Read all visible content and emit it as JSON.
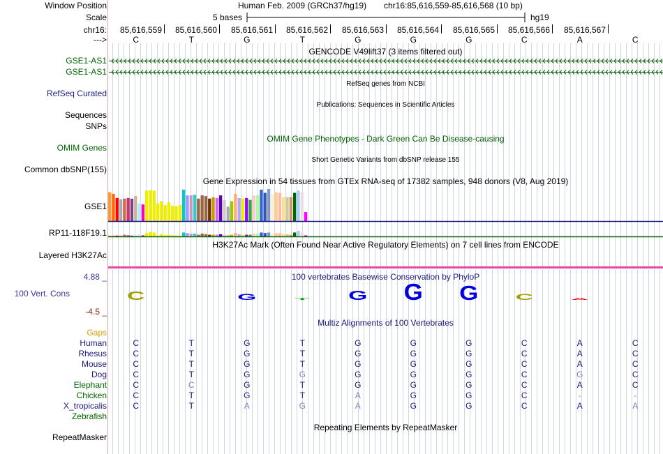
{
  "colors": {
    "track_gene": "#006400",
    "track_navy": "#1a1a7e",
    "cons_axis": "#3a3a9a",
    "gaps": "#e0a000",
    "guide_line": "#cfd3e6",
    "mismatch": "#7f7fbf"
  },
  "header": {
    "window_label": "Window Position",
    "scale_label": "Scale",
    "chrom_label": "chr16:",
    "strand_label": "--->",
    "assembly_text": "Human Feb. 2009 (GRCh37/hg19)",
    "region_text": "chr16:85,616,559-85,616,568 (10 bp)",
    "scale_text": "5 bases",
    "db_text": "hg19",
    "positions": [
      "85,616,559",
      "85,616,560",
      "85,616,561",
      "85,616,562",
      "85,616,563",
      "85,616,564",
      "85,616,565",
      "85,616,566",
      "85,616,567"
    ]
  },
  "sequence": [
    "C",
    "T",
    "G",
    "T",
    "G",
    "G",
    "G",
    "C",
    "A",
    "C"
  ],
  "gencode": {
    "title": "GENCODE V49lift37 (3 items filtered out)",
    "items": [
      "GSE1-AS1",
      "GSE1-AS1"
    ]
  },
  "refseq": {
    "label": "RefSeq Curated",
    "title": "RefSeq genes from NCBI"
  },
  "sequences": {
    "label": "Sequences",
    "title": "Publications: Sequences in Scientific Articles"
  },
  "snps": {
    "label": "SNPs"
  },
  "omim": {
    "label": "OMIM Genes",
    "title": "OMIM Gene Phenotypes - Dark Green Can Be Disease-causing"
  },
  "dbsnp": {
    "label": "Common dbSNP(155)",
    "title": "Short Genetic Variants from dbSNP release 155"
  },
  "gtex": {
    "title": "Gene Expression in 54 tissues from GTEx RNA-seq of 17382 samples, 948 donors (V8, Aug 2019)",
    "gene1": "GSE1",
    "gene2": "RP11-118F19.1",
    "levels1": [
      0.9,
      0.85,
      0.72,
      0.68,
      0.7,
      0.72,
      0.7,
      0.78,
      0.55,
      0.52,
      0.95,
      0.96,
      0.95,
      0.55,
      0.62,
      0.5,
      0.58,
      0.48,
      0.46,
      0.5,
      0.98,
      0.8,
      0.8,
      0.82,
      0.7,
      0.8,
      0.78,
      0.7,
      0.74,
      0.72,
      0.8,
      0.65,
      0.45,
      0.62,
      0.85,
      0.72,
      0.7,
      0.72,
      0.66,
      0.8,
      0.8,
      0.98,
      0.88,
      1.0,
      0.84,
      0.9,
      0.88,
      0.75,
      0.75,
      0.75,
      0.88,
      0.95,
      0.9,
      0.28
    ],
    "levels2": [
      0.1,
      0.1,
      0.15,
      0.15,
      0.3,
      0.2,
      0.15,
      0.1,
      0.3,
      0.2,
      0.6,
      0.8,
      0.7,
      0.2,
      0.4,
      0.2,
      0.3,
      0.2,
      0.15,
      0.2,
      0.7,
      0.6,
      0.5,
      0.5,
      0.3,
      0.5,
      0.4,
      0.3,
      0.3,
      0.3,
      0.4,
      0.3,
      0.2,
      0.3,
      0.6,
      0.4,
      0.3,
      0.3,
      0.3,
      0.5,
      0.5,
      0.7,
      0.6,
      0.7,
      0.5,
      0.6,
      0.6,
      0.4,
      0.4,
      0.3,
      0.7,
      1.0,
      0.7,
      0.2
    ],
    "colors": [
      "#FF9933",
      "#FF6600",
      "#FF0000",
      "#AAAAAA",
      "#CC6655",
      "#CC3366",
      "#77448B",
      "#CCB399",
      "#AAEEFF",
      "#FF00BB",
      "#EEEE00",
      "#EEEE00",
      "#EEEE00",
      "#EEEE00",
      "#EEEE00",
      "#EEEE00",
      "#EEEE00",
      "#EEEE00",
      "#EEEE00",
      "#EEEE00",
      "#00CCCC",
      "#9999FF",
      "#CC99BB",
      "#33CCCC",
      "#996644",
      "#996644",
      "#996644",
      "#663300",
      "#CC9900",
      "#CC66FF",
      "#6600AA",
      "#CCCCCC",
      "#AAAAAA",
      "#99CC00",
      "#FFAA77",
      "#AAAAFF",
      "#EEEE00",
      "#9900FF",
      "#33AA33",
      "#FFCCCC",
      "#AAFF99",
      "#3366CC",
      "#3355BB",
      "#7799CC",
      "#FFEECC",
      "#FFCC99",
      "#FFBB99",
      "#FFDD99",
      "#CCCC99",
      "#CC9966",
      "#006600",
      "#AACCFF",
      "#EEDDDD",
      "#FF00FF"
    ]
  },
  "h3k27ac": {
    "label": "Layered H3K27Ac",
    "title": "H3K27Ac Mark (Often Found Near Active Regulatory Elements) on 7 cell lines from ENCODE"
  },
  "phylop": {
    "label": "100 Vert. Cons",
    "max_label": "4.88 _",
    "min_label": "-4.5 _",
    "title": "100 vertebrates Basewise Conservation by PhyloP",
    "scores": [
      1.6,
      0.0,
      1.1,
      0.1,
      1.7,
      3.0,
      2.6,
      1.1,
      0.35,
      0.0
    ]
  },
  "multiz": {
    "title": "Multiz Alignments of 100 Vertebrates",
    "gaps_label": "Gaps",
    "species": [
      {
        "name": "Human",
        "bases": [
          "C",
          "T",
          "G",
          "T",
          "G",
          "G",
          "G",
          "C",
          "A",
          "C"
        ]
      },
      {
        "name": "Rhesus",
        "bases": [
          "C",
          "T",
          "G",
          "T",
          "G",
          "G",
          "G",
          "C",
          "A",
          "C"
        ]
      },
      {
        "name": "Mouse",
        "bases": [
          "C",
          "T",
          "G",
          "T",
          "G",
          "G",
          "G",
          "C",
          "A",
          "C"
        ]
      },
      {
        "name": "Dog",
        "bases": [
          "C",
          "T",
          "G",
          "G",
          "G",
          "G",
          "G",
          "C",
          "G",
          "C"
        ]
      },
      {
        "name": "Elephant",
        "bases": [
          "C",
          "C",
          "G",
          "T",
          "G",
          "G",
          "G",
          "C",
          "A",
          "C"
        ]
      },
      {
        "name": "Chicken",
        "bases": [
          "C",
          "T",
          "G",
          "T",
          "A",
          "G",
          "G",
          "C",
          "-",
          "-"
        ]
      },
      {
        "name": "X_tropicalis",
        "bases": [
          "C",
          "T",
          "A",
          "G",
          "A",
          "G",
          "G",
          "C",
          "A",
          "A"
        ]
      },
      {
        "name": "Zebrafish",
        "bases": []
      }
    ]
  },
  "repeatmasker": {
    "label": "RepeatMasker",
    "title": "Repeating Elements by RepeatMasker"
  }
}
